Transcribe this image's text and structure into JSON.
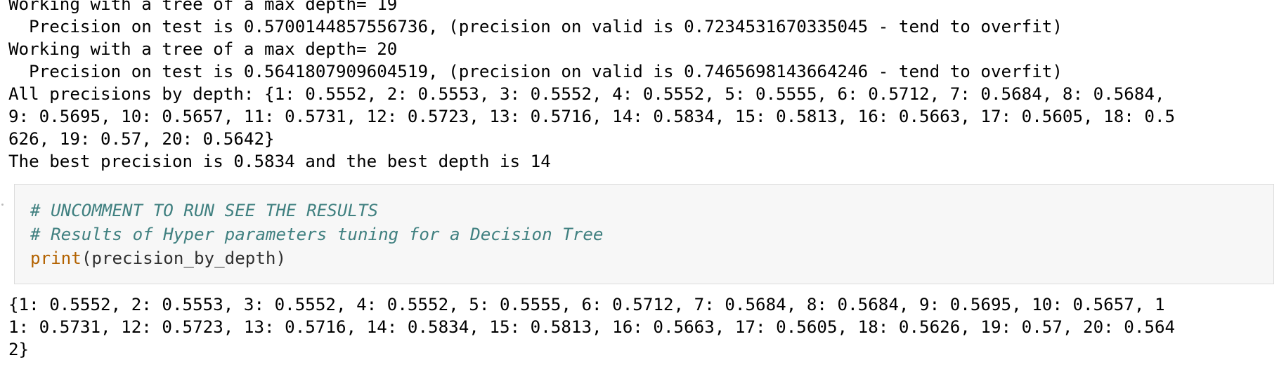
{
  "top_output": {
    "lines": [
      "Working with a tree of a max depth= 19",
      "  Precision on test is 0.5700144857556736, (precision on valid is 0.7234531670335045 - tend to overfit)",
      "Working with a tree of a max depth= 20",
      "  Precision on test is 0.5641807909604519, (precision on valid is 0.7465698143664246 - tend to overfit)",
      "All precisions by depth: {1: 0.5552, 2: 0.5553, 3: 0.5552, 4: 0.5552, 5: 0.5555, 6: 0.5712, 7: 0.5684, 8: 0.5684,",
      "9: 0.5695, 10: 0.5657, 11: 0.5731, 12: 0.5723, 13: 0.5716, 14: 0.5834, 15: 0.5813, 16: 0.5663, 17: 0.5605, 18: 0.5",
      "626, 19: 0.57, 20: 0.5642}",
      "The best precision is 0.5834 and the best depth is 14"
    ]
  },
  "code_cell": {
    "comment_1": "# UNCOMMENT TO RUN SEE THE RESULTS",
    "comment_2": "# Results of Hyper parameters tuning for a Decision Tree",
    "func_name": "print",
    "func_args": "(precision_by_depth)"
  },
  "bottom_output": {
    "lines": [
      "{1: 0.5552, 2: 0.5553, 3: 0.5552, 4: 0.5552, 5: 0.5555, 6: 0.5712, 7: 0.5684, 8: 0.5684, 9: 0.5695, 10: 0.5657, 1",
      "1: 0.5731, 12: 0.5723, 13: 0.5716, 14: 0.5834, 15: 0.5813, 16: 0.5663, 17: 0.5605, 18: 0.5626, 19: 0.57, 20: 0.564",
      "2}"
    ]
  },
  "colors": {
    "comment": "#408080",
    "builtin": "#b36200",
    "cell_background": "#f7f7f7",
    "cell_border": "#dcdcdc"
  }
}
